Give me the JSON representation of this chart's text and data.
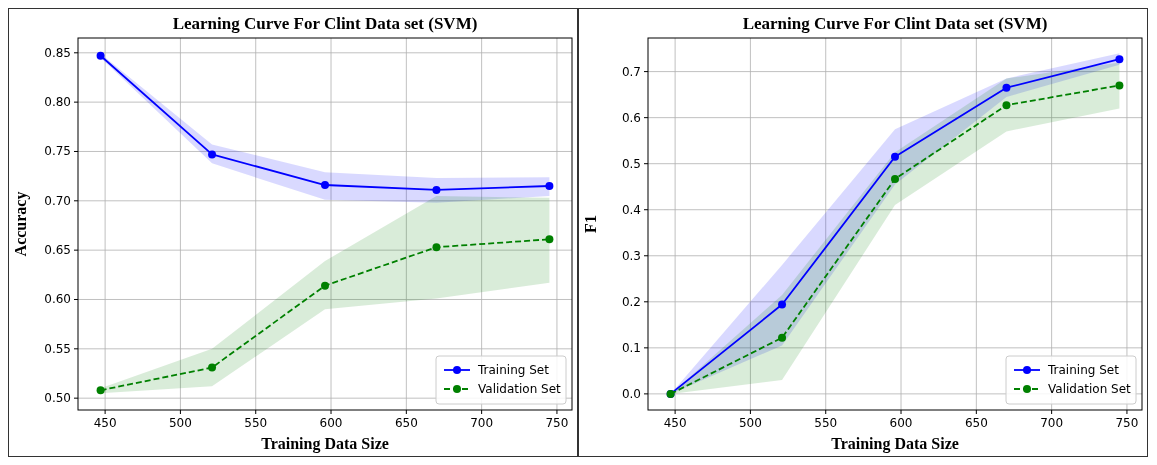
{
  "chart_data": [
    {
      "type": "line",
      "title": "Learning Curve For Clint Data set (SVM)",
      "xlabel": "Training Data Size",
      "ylabel": "Accuracy",
      "x": [
        447,
        521,
        596,
        670,
        745
      ],
      "xlim": [
        432,
        760
      ],
      "xticks": [
        450,
        500,
        550,
        600,
        650,
        700,
        750
      ],
      "ylim": [
        0.488,
        0.865
      ],
      "yticks": [
        {
          "value": 0.5,
          "label": "0.50"
        },
        {
          "value": 0.55,
          "label": "0.55"
        },
        {
          "value": 0.6,
          "label": "0.60"
        },
        {
          "value": 0.65,
          "label": "0.65"
        },
        {
          "value": 0.7,
          "label": "0.70"
        },
        {
          "value": 0.75,
          "label": "0.75"
        },
        {
          "value": 0.8,
          "label": "0.80"
        },
        {
          "value": 0.85,
          "label": "0.85"
        }
      ],
      "grid": true,
      "legend": "bottom right",
      "marker": "circle",
      "series": [
        {
          "name": "Training Set",
          "color": "#0000ff",
          "line_style": "solid",
          "values": [
            0.847,
            0.747,
            0.716,
            0.711,
            0.715
          ],
          "lower": [
            0.845,
            0.738,
            0.701,
            0.698,
            0.705
          ],
          "upper": [
            0.849,
            0.757,
            0.729,
            0.723,
            0.724
          ]
        },
        {
          "name": "Validation Set",
          "color": "#008000",
          "line_style": "dashed",
          "values": [
            0.508,
            0.531,
            0.614,
            0.653,
            0.661
          ],
          "lower": [
            0.505,
            0.512,
            0.59,
            0.601,
            0.617
          ],
          "upper": [
            0.51,
            0.55,
            0.639,
            0.705,
            0.703
          ]
        }
      ]
    },
    {
      "type": "line",
      "title": "Learning Curve For Clint Data set (SVM)",
      "xlabel": "Training Data Size",
      "ylabel": "F1",
      "x": [
        447,
        521,
        596,
        670,
        745
      ],
      "xlim": [
        432,
        760
      ],
      "xticks": [
        450,
        500,
        550,
        600,
        650,
        700,
        750
      ],
      "ylim": [
        -0.035,
        0.773
      ],
      "yticks": [
        {
          "value": 0,
          "label": "0.0"
        },
        0.1,
        0.2,
        0.3,
        0.4,
        0.5,
        0.6,
        0.7
      ],
      "grid": true,
      "legend": "bottom right",
      "marker": "circle",
      "series": [
        {
          "name": "Training Set",
          "color": "#0000ff",
          "line_style": "solid",
          "values": [
            0,
            0.194,
            0.515,
            0.665,
            0.727
          ],
          "lower": [
            0,
            0.105,
            0.455,
            0.645,
            0.715
          ],
          "upper": [
            0,
            0.28,
            0.575,
            0.685,
            0.74
          ]
        },
        {
          "name": "Validation Set",
          "color": "#008000",
          "line_style": "dashed",
          "values": [
            0,
            0.122,
            0.467,
            0.627,
            0.67
          ],
          "lower": [
            0,
            0.03,
            0.41,
            0.57,
            0.62
          ],
          "upper": [
            0,
            0.215,
            0.525,
            0.685,
            0.72
          ]
        }
      ]
    }
  ]
}
